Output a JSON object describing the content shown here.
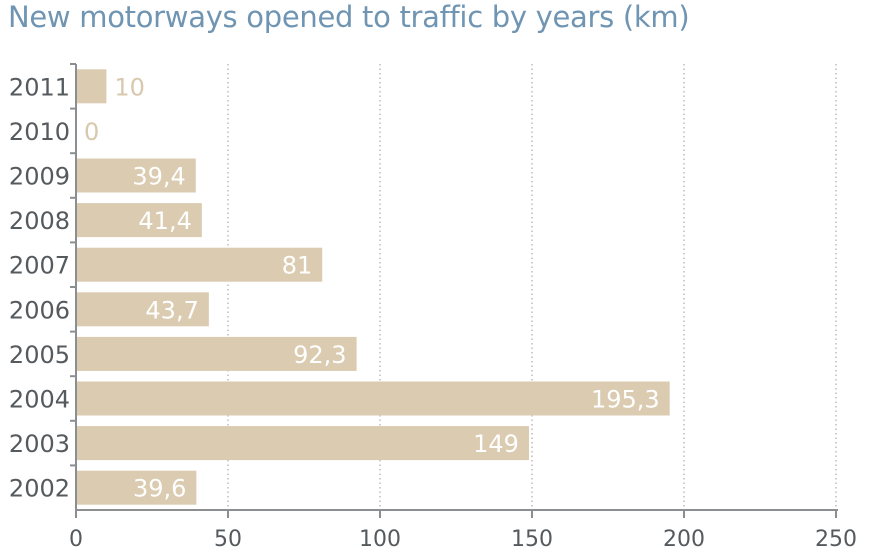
{
  "chart_data": {
    "type": "bar",
    "orientation": "horizontal",
    "title": "New motorways opened to traffic by years (km)",
    "categories": [
      "2011",
      "2010",
      "2009",
      "2008",
      "2007",
      "2006",
      "2005",
      "2004",
      "2003",
      "2002"
    ],
    "values": [
      10,
      0,
      39.4,
      41.4,
      81,
      43.7,
      92.3,
      195.3,
      149,
      39.6
    ],
    "value_labels": [
      "10",
      "0",
      "39,4",
      "41,4",
      "81",
      "43,7",
      "92,3",
      "195,3",
      "149",
      "39,6"
    ],
    "xlim": [
      0,
      250
    ],
    "xticks": [
      "0",
      "50",
      "100",
      "150",
      "200",
      "250"
    ],
    "grid": true,
    "colors": {
      "bar": "#dbcbb0",
      "axis": "#8c8f92",
      "grid": "#9a9a9a",
      "title": "#6f95b3"
    }
  }
}
